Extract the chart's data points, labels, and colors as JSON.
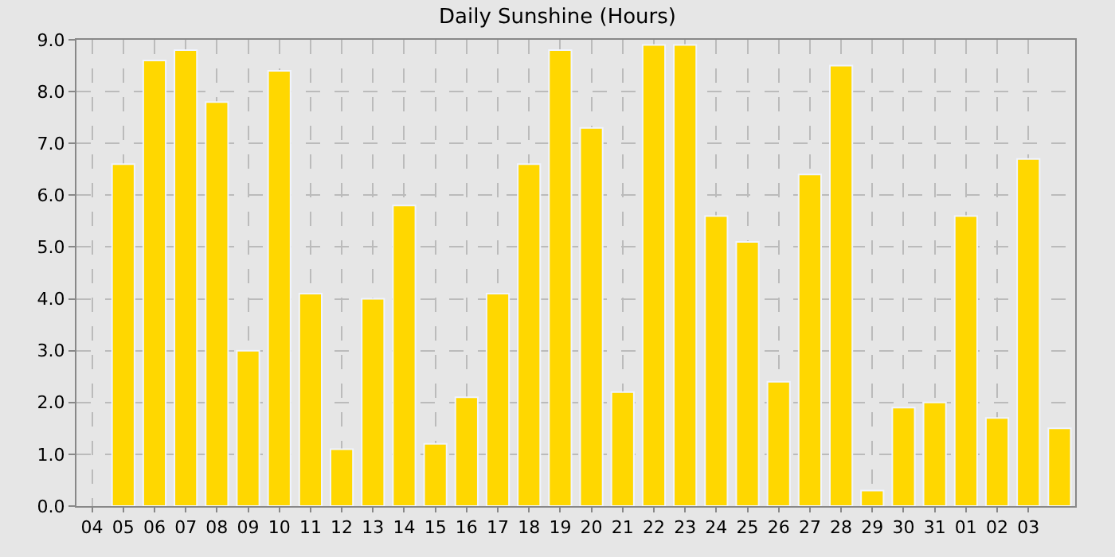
{
  "chart_data": {
    "type": "bar",
    "title": "Daily Sunshine (Hours)",
    "categories": [
      "04",
      "05",
      "06",
      "07",
      "08",
      "09",
      "10",
      "11",
      "12",
      "13",
      "14",
      "15",
      "16",
      "17",
      "18",
      "19",
      "20",
      "21",
      "22",
      "23",
      "24",
      "25",
      "26",
      "27",
      "28",
      "29",
      "30",
      "31",
      "01",
      "02",
      "03",
      null
    ],
    "values": [
      null,
      6.6,
      8.6,
      8.8,
      7.8,
      3.0,
      8.4,
      4.1,
      1.1,
      4.0,
      5.8,
      1.2,
      2.1,
      4.1,
      6.6,
      8.8,
      7.3,
      2.2,
      8.9,
      8.9,
      5.6,
      5.1,
      2.4,
      6.4,
      8.5,
      0.3,
      1.9,
      2.0,
      5.6,
      1.7,
      6.7,
      1.5
    ],
    "color": "#ffd700",
    "ylim": [
      0,
      9
    ],
    "yticks": [
      {
        "value": 0,
        "label": "0.0"
      },
      {
        "value": 1,
        "label": "1.0"
      },
      {
        "value": 2,
        "label": "2.0"
      },
      {
        "value": 3,
        "label": "3.0"
      },
      {
        "value": 4,
        "label": "4.0"
      },
      {
        "value": 5,
        "label": "5.0"
      },
      {
        "value": 6,
        "label": "6.0"
      },
      {
        "value": 7,
        "label": "7.0"
      },
      {
        "value": 8,
        "label": "8.0"
      },
      {
        "value": 9,
        "label": "9.0"
      }
    ],
    "grid": true
  }
}
